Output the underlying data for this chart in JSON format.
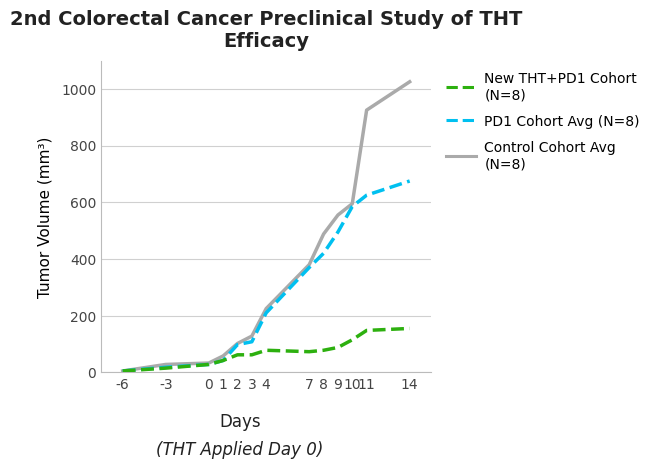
{
  "title": "2nd Colorectal Cancer Preclinical Study of THT\nEfficacy",
  "ylabel": "Tumor Volume (mm³)",
  "x_ticks": [
    -6,
    -3,
    0,
    1,
    2,
    3,
    4,
    7,
    8,
    9,
    10,
    11,
    14
  ],
  "tht_pd1": {
    "x": [
      -6,
      -3,
      0,
      1,
      2,
      3,
      4,
      7,
      8,
      9,
      10,
      11,
      14
    ],
    "y": [
      5,
      15,
      28,
      42,
      62,
      62,
      78,
      73,
      78,
      88,
      115,
      148,
      155
    ],
    "color": "#2db00f",
    "label": "New THT+PD1 Cohort\n(N=8)",
    "linestyle": "--",
    "linewidth": 2.5
  },
  "pd1": {
    "x": [
      -6,
      -3,
      0,
      1,
      2,
      3,
      4,
      7,
      8,
      9,
      10,
      11,
      14
    ],
    "y": [
      5,
      18,
      28,
      42,
      98,
      108,
      210,
      370,
      420,
      495,
      585,
      625,
      675
    ],
    "color": "#00c0f0",
    "label": "PD1 Cohort Avg (N=8)",
    "linestyle": "--",
    "linewidth": 2.5
  },
  "control": {
    "x": [
      -6,
      -3,
      0,
      1,
      2,
      3,
      4,
      7,
      8,
      9,
      10,
      11,
      14
    ],
    "y": [
      5,
      28,
      33,
      58,
      102,
      128,
      225,
      380,
      488,
      555,
      595,
      925,
      1025
    ],
    "color": "#aaaaaa",
    "label": "Control Cohort Avg\n(N=8)",
    "linestyle": "-",
    "linewidth": 2.5
  },
  "ylim": [
    0,
    1100
  ],
  "yticks": [
    0,
    200,
    400,
    600,
    800,
    1000
  ],
  "xlim": [
    -7.5,
    15.5
  ],
  "background_color": "#ffffff",
  "title_fontsize": 14,
  "axis_label_fontsize": 11,
  "tick_fontsize": 10,
  "legend_fontsize": 10
}
